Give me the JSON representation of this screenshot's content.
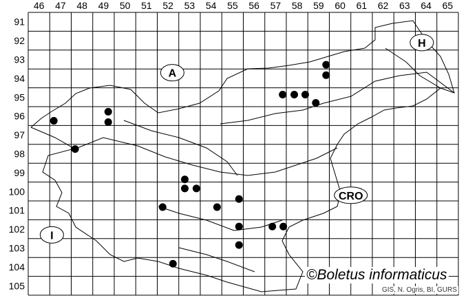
{
  "map": {
    "columns": [
      "46",
      "47",
      "48",
      "49",
      "50",
      "51",
      "52",
      "53",
      "54",
      "55",
      "56",
      "57",
      "58",
      "59",
      "60",
      "61",
      "62",
      "63",
      "64",
      "65"
    ],
    "rows": [
      "91",
      "92",
      "93",
      "94",
      "95",
      "96",
      "97",
      "98",
      "99",
      "100",
      "101",
      "102",
      "103",
      "104",
      "105"
    ],
    "country_labels": [
      {
        "text": "A",
        "col": 52.7,
        "row": 94.2
      },
      {
        "text": "H",
        "col": 64.3,
        "row": 92.6
      },
      {
        "text": "I",
        "col": 47.1,
        "row": 102.8
      },
      {
        "text": "CRO",
        "col": 61.0,
        "row": 100.7
      }
    ],
    "records": [
      {
        "col": 47.19,
        "row": 96.75
      },
      {
        "col": 48.18,
        "row": 98.25
      },
      {
        "col": 49.72,
        "row": 96.27
      },
      {
        "col": 49.72,
        "row": 96.82
      },
      {
        "col": 57.83,
        "row": 95.36
      },
      {
        "col": 58.37,
        "row": 95.36
      },
      {
        "col": 58.88,
        "row": 95.36
      },
      {
        "col": 59.37,
        "row": 95.8
      },
      {
        "col": 59.85,
        "row": 93.78
      },
      {
        "col": 59.85,
        "row": 94.33
      },
      {
        "col": 53.28,
        "row": 99.86
      },
      {
        "col": 53.28,
        "row": 100.34
      },
      {
        "col": 53.82,
        "row": 100.34
      },
      {
        "col": 52.25,
        "row": 101.33
      },
      {
        "col": 54.78,
        "row": 101.33
      },
      {
        "col": 55.8,
        "row": 100.9
      },
      {
        "col": 55.8,
        "row": 102.36
      },
      {
        "col": 55.8,
        "row": 103.34
      },
      {
        "col": 57.35,
        "row": 102.36
      },
      {
        "col": 57.86,
        "row": 102.36
      },
      {
        "col": 52.73,
        "row": 104.33
      }
    ],
    "record_color": "#000000",
    "copyright": "©Boletus informaticus",
    "credit": "GIS, N. Ogris, BI, GURS"
  }
}
